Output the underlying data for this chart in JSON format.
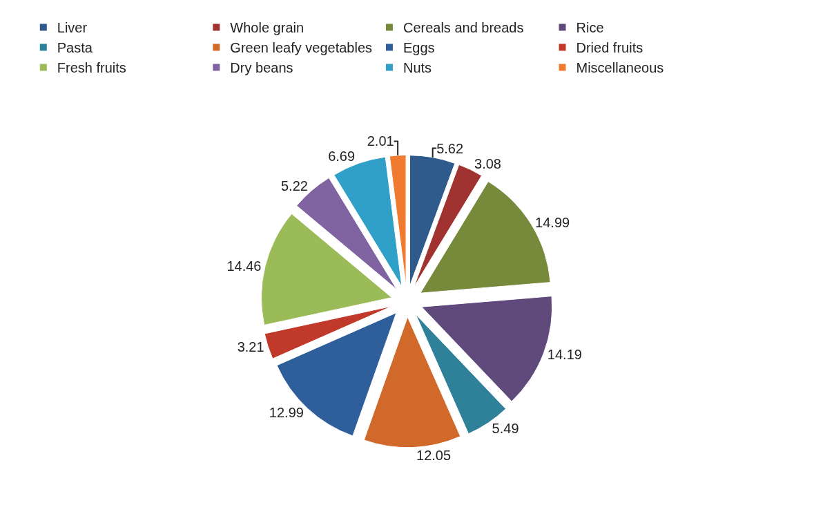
{
  "chart_data": {
    "type": "pie",
    "categories": [
      "Liver",
      "Whole grain",
      "Cereals and breads",
      "Rice",
      "Pasta",
      "Green leafy vegetables",
      "Eggs",
      "Dried fruits",
      "Fresh fruits",
      "Dry beans",
      "Nuts",
      "Miscellaneous"
    ],
    "values": [
      5.62,
      3.08,
      14.99,
      14.19,
      5.49,
      12.05,
      12.99,
      3.21,
      14.46,
      5.22,
      6.69,
      2.01
    ],
    "colors": [
      "#2e5a8c",
      "#a0322f",
      "#77893a",
      "#604a7b",
      "#2f8199",
      "#d1692a",
      "#2f5f9a",
      "#c0392b",
      "#9bbb59",
      "#8064a2",
      "#31a0c8",
      "#f07a30"
    ],
    "data_labels": true,
    "legend": "top"
  }
}
